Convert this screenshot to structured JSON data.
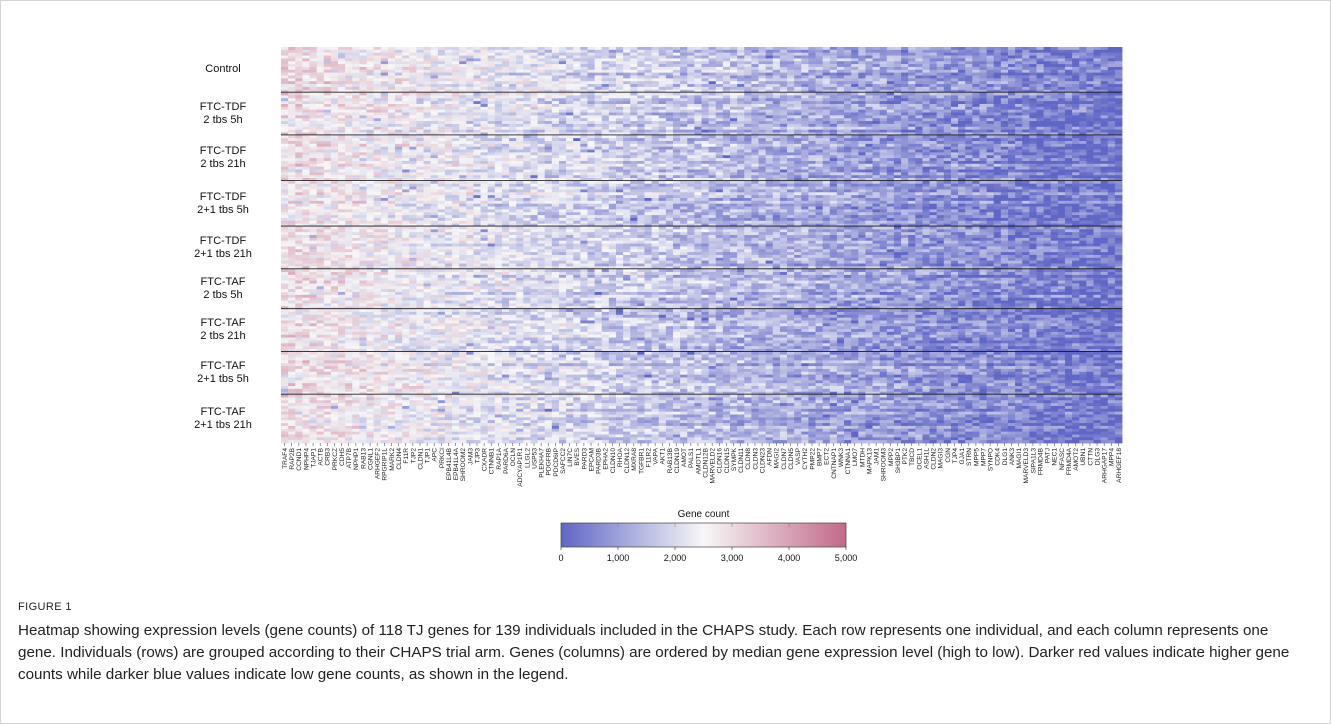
{
  "chart_data": {
    "type": "heatmap",
    "title": "",
    "xlabel": "",
    "ylabel": "",
    "groups": [
      {
        "name": "Control",
        "rows": 16
      },
      {
        "name": "FTC-TDF\n2 tbs 5h",
        "rows": 15
      },
      {
        "name": "FTC-TDF\n2 tbs 21h",
        "rows": 16
      },
      {
        "name": "FTC-TDF\n2+1 tbs 5h",
        "rows": 16
      },
      {
        "name": "FTC-TDF\n2+1 tbs 21h",
        "rows": 15
      },
      {
        "name": "FTC-TAF\n2 tbs 5h",
        "rows": 14
      },
      {
        "name": "FTC-TAF\n2 tbs 21h",
        "rows": 15
      },
      {
        "name": "FTC-TAF\n2+1 tbs 5h",
        "rows": 15
      },
      {
        "name": "FTC-TAF\n2+1 tbs 21h",
        "rows": 17
      }
    ],
    "genes": [
      "TRAF4",
      "RAP2B",
      "CCND1",
      "NPHP4",
      "TJAP1",
      "ACTB",
      "CRB3",
      "PRKCZ",
      "CDH5",
      "ATP7B",
      "NPHP1",
      "RAB13",
      "CGNL1",
      "ARHGEF2",
      "RPGRIP1L",
      "MARK2",
      "CLDN4",
      "F11R",
      "TJP2",
      "CLDN1",
      "TJP1",
      "APC",
      "PRKCI",
      "EPB41L4B",
      "EPB41L4A",
      "SHROOM2",
      "JAM3",
      "TJP3",
      "CXADR",
      "CTNNB1",
      "RAP1A",
      "PARD6A",
      "OCLN",
      "ADCYAP1R1",
      "LLGL2",
      "USP53",
      "PLEKHA7",
      "PDGFRB",
      "PDCD6IP",
      "SAFCC2",
      "LIN7C",
      "BVES",
      "PARD3",
      "EPCAM",
      "PARD3B",
      "EPHA2",
      "CLDN10",
      "RHOA",
      "CLDN12",
      "MXRA8",
      "TGFBR1",
      "F11R2",
      "VAPA",
      "AKT1",
      "RAB13B",
      "CLDN19",
      "AMOT",
      "PALS1",
      "AMOTL1",
      "CLDN12B",
      "MARVELD2",
      "CLDN16",
      "CLDN15",
      "SYMPK",
      "CLDN11",
      "CLDN8",
      "CLDN3",
      "CLDN23",
      "AFDN",
      "MAGI2",
      "CLDN7",
      "CLDN5",
      "VASP",
      "CYTH2",
      "PMP22",
      "BMP7",
      "ECT2",
      "CNTNAP1",
      "WNK3",
      "CTNNA1",
      "LMO7",
      "MTDH",
      "MAPK13",
      "JAM1",
      "SHROOM3",
      "MPP2",
      "SH3BP1",
      "PTK2",
      "TBCD",
      "OCEL1",
      "ASH1L",
      "CLDN2",
      "MAGI3",
      "CGN",
      "TJP4",
      "GJA1",
      "STRN",
      "MPP5",
      "MPP7",
      "SYNPO",
      "CDK4",
      "DLG1",
      "ANK3",
      "MAGI1",
      "MARVELD3",
      "SIPA1L3",
      "FRMD4B",
      "PATJ",
      "NEC1",
      "NFASC",
      "FRMD4A",
      "AMOT2",
      "UBN1",
      "CTTN",
      "DLG3",
      "ARHGAP17",
      "MPP4",
      "ARHGEF18"
    ],
    "gene_order": "by median gene expression level (high to low)",
    "colorbar": {
      "title": "Gene count",
      "min": 0,
      "max": 5000,
      "ticks": [
        "0",
        "1,000",
        "2,000",
        "3,000",
        "4,000",
        "5,000"
      ]
    },
    "colors": {
      "low": "#6066c6",
      "mid": "#f7f7f7",
      "high": "#c2698a"
    }
  },
  "figure": {
    "label": "FIGURE 1",
    "caption": "Heatmap showing expression levels (gene counts) of 118 TJ genes for 139 individuals included in the CHAPS study. Each row represents one individual, and each column represents one gene. Individuals (rows) are grouped according to their CHAPS trial arm. Genes (columns) are ordered by median gene expression level (high to low). Darker red values indicate higher gene counts while darker blue values indicate low gene counts, as shown in the legend."
  }
}
